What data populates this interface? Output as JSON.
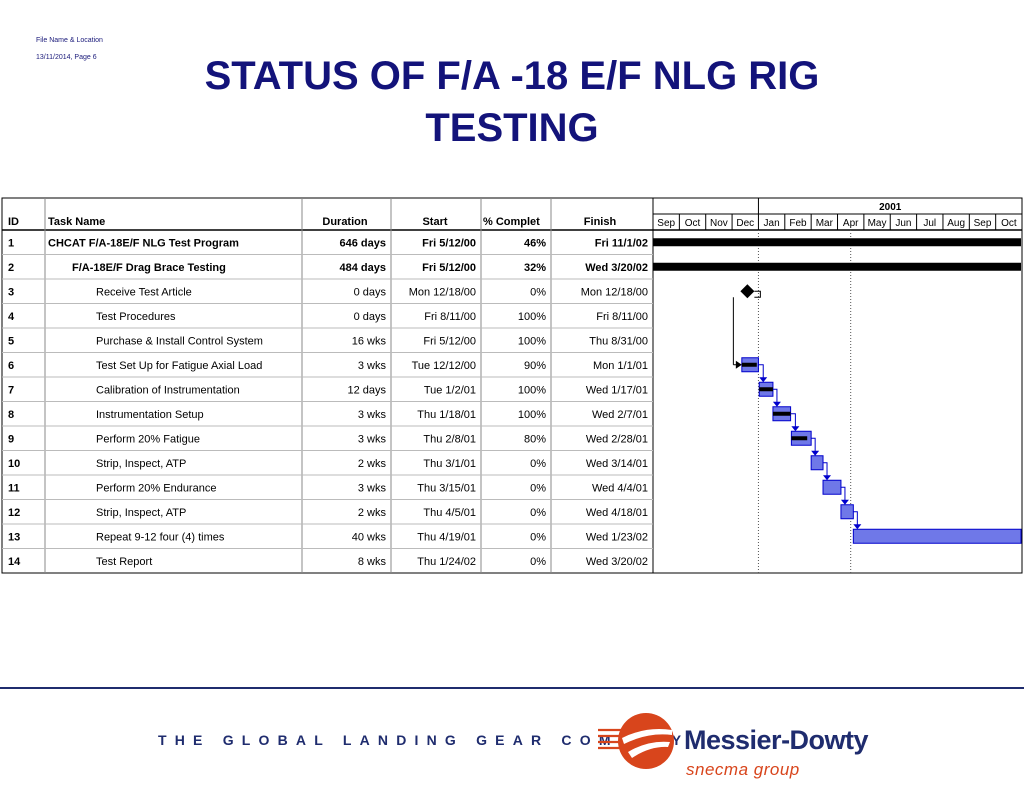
{
  "slide": {
    "file_label": "File Name & Location",
    "date_page": "13/11/2014,  Page 6",
    "title_line1": "STATUS OF F/A -18 E/F NLG RIG",
    "title_line2": "TESTING"
  },
  "table": {
    "columns": {
      "id": "ID",
      "name": "Task Name",
      "duration": "Duration",
      "start": "Start",
      "complete": "% Complet",
      "finish": "Finish"
    },
    "year_label": "2001",
    "months": [
      "Sep",
      "Oct",
      "Nov",
      "Dec",
      "Jan",
      "Feb",
      "Mar",
      "Apr",
      "May",
      "Jun",
      "Jul",
      "Aug",
      "Sep",
      "Oct"
    ],
    "tasks": [
      {
        "id": "1",
        "name": "CHCAT F/A-18E/F NLG Test Program",
        "duration": "646 days",
        "start": "Fri 5/12/00",
        "complete": "46%",
        "finish": "Fri 11/1/02",
        "bold": true,
        "indent": 0,
        "type": "summary",
        "start_month": 0,
        "end_month": 14
      },
      {
        "id": "2",
        "name": "F/A-18E/F Drag Brace Testing",
        "duration": "484 days",
        "start": "Fri 5/12/00",
        "complete": "32%",
        "finish": "Wed 3/20/02",
        "bold": true,
        "indent": 1,
        "type": "summary",
        "start_month": 0,
        "end_month": 14
      },
      {
        "id": "3",
        "name": "Receive Test Article",
        "duration": "0 days",
        "start": "Mon 12/18/00",
        "complete": "0%",
        "finish": "Mon 12/18/00",
        "bold": false,
        "indent": 2,
        "type": "milestone",
        "start_month": 3.58
      },
      {
        "id": "4",
        "name": "Test Procedures",
        "duration": "0 days",
        "start": "Fri 8/11/00",
        "complete": "100%",
        "finish": "Fri 8/11/00",
        "bold": false,
        "indent": 2,
        "type": "none"
      },
      {
        "id": "5",
        "name": "Purchase & Install Control System",
        "duration": "16 wks",
        "start": "Fri 5/12/00",
        "complete": "100%",
        "finish": "Thu 8/31/00",
        "bold": false,
        "indent": 2,
        "type": "none"
      },
      {
        "id": "6",
        "name": "Test Set Up for Fatigue Axial Load",
        "duration": "3 wks",
        "start": "Tue 12/12/00",
        "complete": "90%",
        "finish": "Mon 1/1/01",
        "bold": false,
        "indent": 2,
        "type": "task",
        "start_month": 3.37,
        "end_month": 4.0,
        "progress": 0.9
      },
      {
        "id": "7",
        "name": "Calibration of Instrumentation",
        "duration": "12 days",
        "start": "Tue 1/2/01",
        "complete": "100%",
        "finish": "Wed 1/17/01",
        "bold": false,
        "indent": 2,
        "type": "task",
        "start_month": 4.03,
        "end_month": 4.55,
        "progress": 1.0
      },
      {
        "id": "8",
        "name": "Instrumentation Setup",
        "duration": "3 wks",
        "start": "Thu 1/18/01",
        "complete": "100%",
        "finish": "Wed 2/7/01",
        "bold": false,
        "indent": 2,
        "type": "task",
        "start_month": 4.55,
        "end_month": 5.22,
        "progress": 1.0
      },
      {
        "id": "9",
        "name": "Perform 20% Fatigue",
        "duration": "3 wks",
        "start": "Thu 2/8/01",
        "complete": "80%",
        "finish": "Wed 2/28/01",
        "bold": false,
        "indent": 2,
        "type": "task",
        "start_month": 5.25,
        "end_month": 6.0,
        "progress": 0.8
      },
      {
        "id": "10",
        "name": "Strip, Inspect, ATP",
        "duration": "2 wks",
        "start": "Thu 3/1/01",
        "complete": "0%",
        "finish": "Wed 3/14/01",
        "bold": false,
        "indent": 2,
        "type": "task",
        "start_month": 6.0,
        "end_month": 6.45,
        "progress": 0
      },
      {
        "id": "11",
        "name": "Perform 20% Endurance",
        "duration": "3 wks",
        "start": "Thu 3/15/01",
        "complete": "0%",
        "finish": "Wed 4/4/01",
        "bold": false,
        "indent": 2,
        "type": "task",
        "start_month": 6.45,
        "end_month": 7.13,
        "progress": 0
      },
      {
        "id": "12",
        "name": "Strip, Inspect, ATP",
        "duration": "2 wks",
        "start": "Thu 4/5/01",
        "complete": "0%",
        "finish": "Wed 4/18/01",
        "bold": false,
        "indent": 2,
        "type": "task",
        "start_month": 7.13,
        "end_month": 7.6,
        "progress": 0
      },
      {
        "id": "13",
        "name": "Repeat 9-12 four (4) times",
        "duration": "40 wks",
        "start": "Thu 4/19/01",
        "complete": "0%",
        "finish": "Wed 1/23/02",
        "bold": false,
        "indent": 2,
        "type": "task",
        "start_month": 7.6,
        "end_month": 14,
        "progress": 0
      },
      {
        "id": "14",
        "name": "Test Report",
        "duration": "8 wks",
        "start": "Thu 1/24/02",
        "complete": "0%",
        "finish": "Wed 3/20/02",
        "bold": false,
        "indent": 2,
        "type": "none"
      }
    ]
  },
  "footer": {
    "tagline": "THE GLOBAL LANDING GEAR COMPANY",
    "brand": "Messier-Dowty",
    "brand_sub": "snecma group"
  },
  "colors": {
    "title": "#13137a",
    "bar_fill": "#6f78e8",
    "bar_stroke": "#0000cc",
    "footer": "#1f2c6e",
    "logo": "#d8451c"
  }
}
